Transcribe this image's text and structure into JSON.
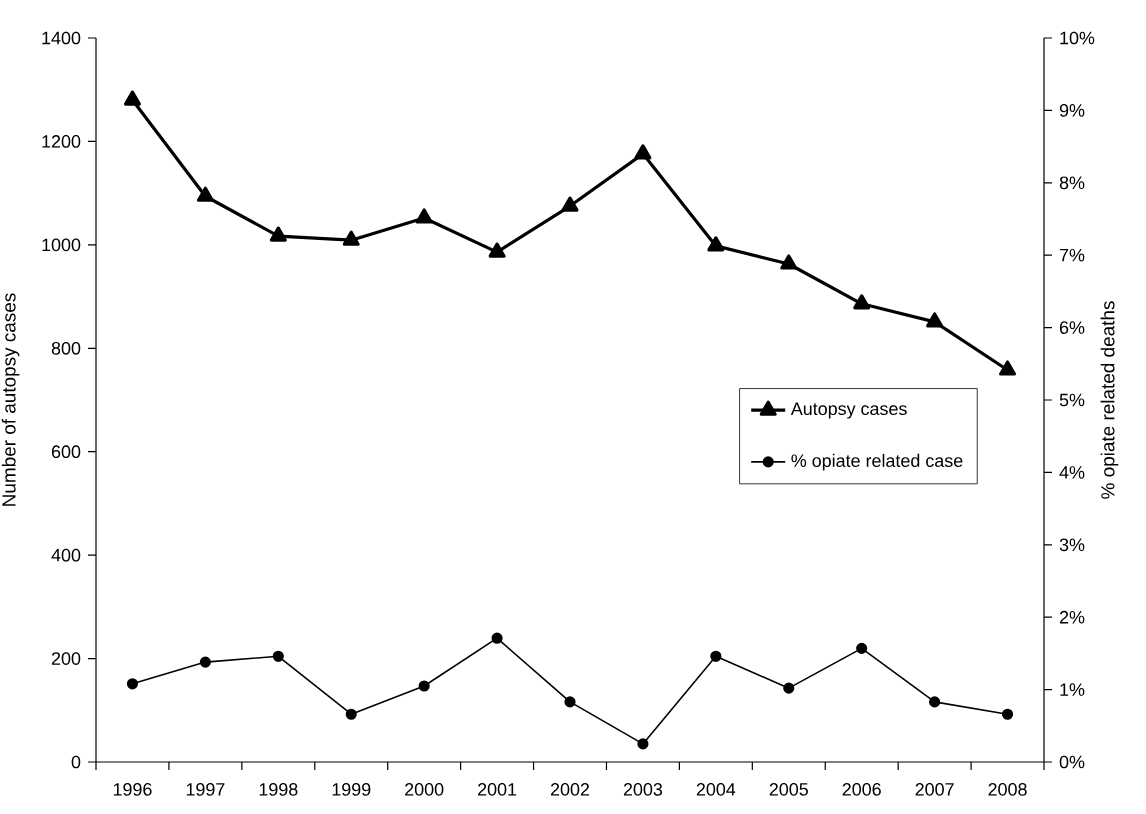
{
  "chart_data": {
    "type": "line",
    "ylabel": "Number of autopsy cases",
    "y2label": "% opiate related deaths",
    "categories": [
      "1996",
      "1997",
      "1998",
      "1999",
      "2000",
      "2001",
      "2002",
      "2003",
      "2004",
      "2005",
      "2006",
      "2007",
      "2008"
    ],
    "series": [
      {
        "name": "Autopsy cases",
        "color": "#000000",
        "marker": "triangle",
        "values": [
          1280,
          1094,
          1017,
          1009,
          1052,
          986,
          1075,
          1176,
          998,
          963,
          886,
          851,
          758
        ]
      },
      {
        "name": "% opiate related case",
        "color": "#000000",
        "marker": "circle",
        "axis": "y2",
        "values": [
          1.08,
          1.38,
          1.46,
          0.66,
          1.05,
          1.71,
          0.83,
          0.25,
          1.46,
          1.02,
          1.57,
          0.83,
          0.66
        ]
      }
    ],
    "ylim": [
      0,
      1400
    ],
    "yticks": [
      0,
      200,
      400,
      600,
      800,
      1000,
      1200,
      1400
    ],
    "y2lim": [
      0,
      10
    ],
    "y2ticks": [
      {
        "value": 0,
        "label": "0%"
      },
      {
        "value": 1,
        "label": "1%"
      },
      {
        "value": 2,
        "label": "2%"
      },
      {
        "value": 3,
        "label": "3%"
      },
      {
        "value": 4,
        "label": "4%"
      },
      {
        "value": 5,
        "label": "5%"
      },
      {
        "value": 6,
        "label": "6%"
      },
      {
        "value": 7,
        "label": "7%"
      },
      {
        "value": 8,
        "label": "8%"
      },
      {
        "value": 9,
        "label": "9%"
      },
      {
        "value": 10,
        "label": "10%"
      }
    ],
    "grid": false,
    "legend": "right",
    "line_style": "solid"
  }
}
